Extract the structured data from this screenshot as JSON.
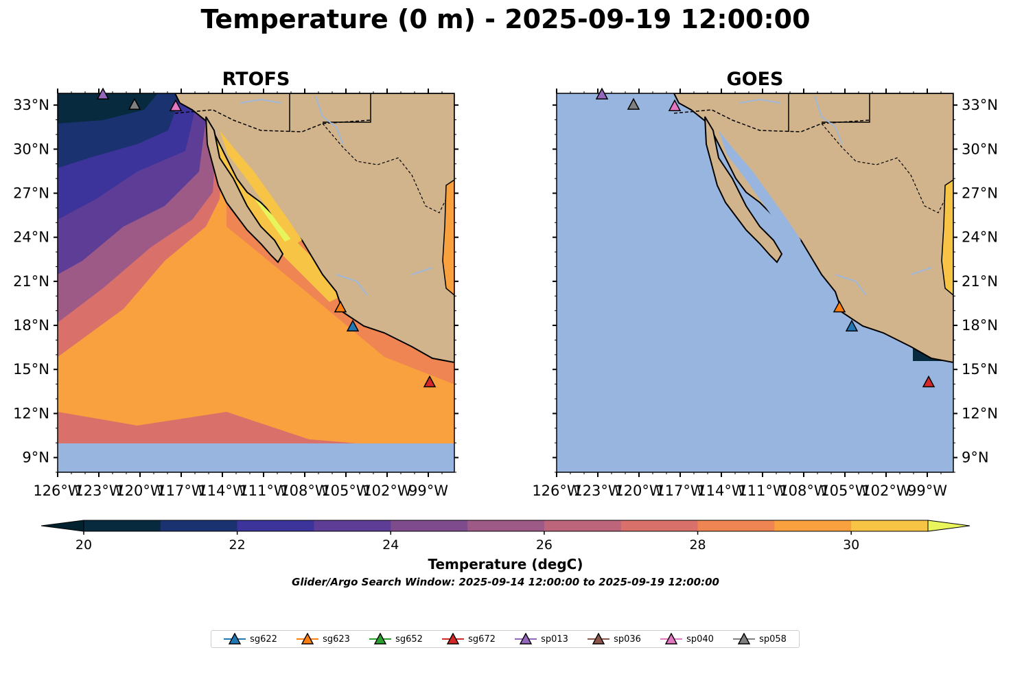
{
  "title": "Temperature (0 m) - 2025-09-19 12:00:00",
  "panels": [
    {
      "title": "RTOFS"
    },
    {
      "title": "GOES"
    }
  ],
  "axes": {
    "lat_ticks": [
      "33°N",
      "30°N",
      "27°N",
      "24°N",
      "21°N",
      "18°N",
      "15°N",
      "12°N",
      "9°N"
    ],
    "lat_values": [
      33,
      30,
      27,
      24,
      21,
      18,
      15,
      12,
      9
    ],
    "lon_ticks": [
      "126°W",
      "123°W",
      "120°W",
      "117°W",
      "114°W",
      "111°W",
      "108°W",
      "105°W",
      "102°W",
      "99°W"
    ],
    "lon_values": [
      -126,
      -123,
      -120,
      -117,
      -114,
      -111,
      -108,
      -105,
      -102,
      -99
    ],
    "lon_range": [
      -126,
      -97.1
    ],
    "lat_range": [
      8,
      33.8
    ]
  },
  "colorbar": {
    "label": "Temperature (degC)",
    "ticks": [
      "20",
      "22",
      "24",
      "26",
      "28",
      "30"
    ],
    "tick_values": [
      20,
      22,
      24,
      26,
      28,
      30
    ],
    "range": [
      20,
      31
    ],
    "colors": [
      "#072a3f",
      "#1b3270",
      "#3d349b",
      "#5e3d96",
      "#7e4c8c",
      "#9e5a86",
      "#bd657b",
      "#d9706a",
      "#ef8552",
      "#f9a03f",
      "#f7c445",
      "#e7f45c"
    ],
    "extend_low_color": "#03222f",
    "extend_high_color": "#e9f55a"
  },
  "search_window": "Glider/Argo Search Window: 2025-09-14 12:00:00 to 2025-09-19 12:00:00",
  "colors": {
    "land": "#d2b48c",
    "ocean_nodata": "#98b5e0",
    "rivers": "#9fb8d8"
  },
  "gliders": [
    {
      "name": "sg622",
      "color": "#1f77b4",
      "lon": -104.5,
      "lat": 17.9
    },
    {
      "name": "sg623",
      "color": "#ff7f0e",
      "lon": -105.4,
      "lat": 19.2
    },
    {
      "name": "sg652",
      "color": "#2ca02c"
    },
    {
      "name": "sg672",
      "color": "#d62728",
      "lon": -98.9,
      "lat": 14.1
    },
    {
      "name": "sp013",
      "color": "#9467bd",
      "lon": -122.7,
      "lat": 33.7
    },
    {
      "name": "sp036",
      "color": "#8c564b"
    },
    {
      "name": "sp040",
      "color": "#e377c2",
      "lon": -117.4,
      "lat": 32.9
    },
    {
      "name": "sp058",
      "color": "#7f7f7f",
      "lon": -120.4,
      "lat": 33.0
    }
  ]
}
